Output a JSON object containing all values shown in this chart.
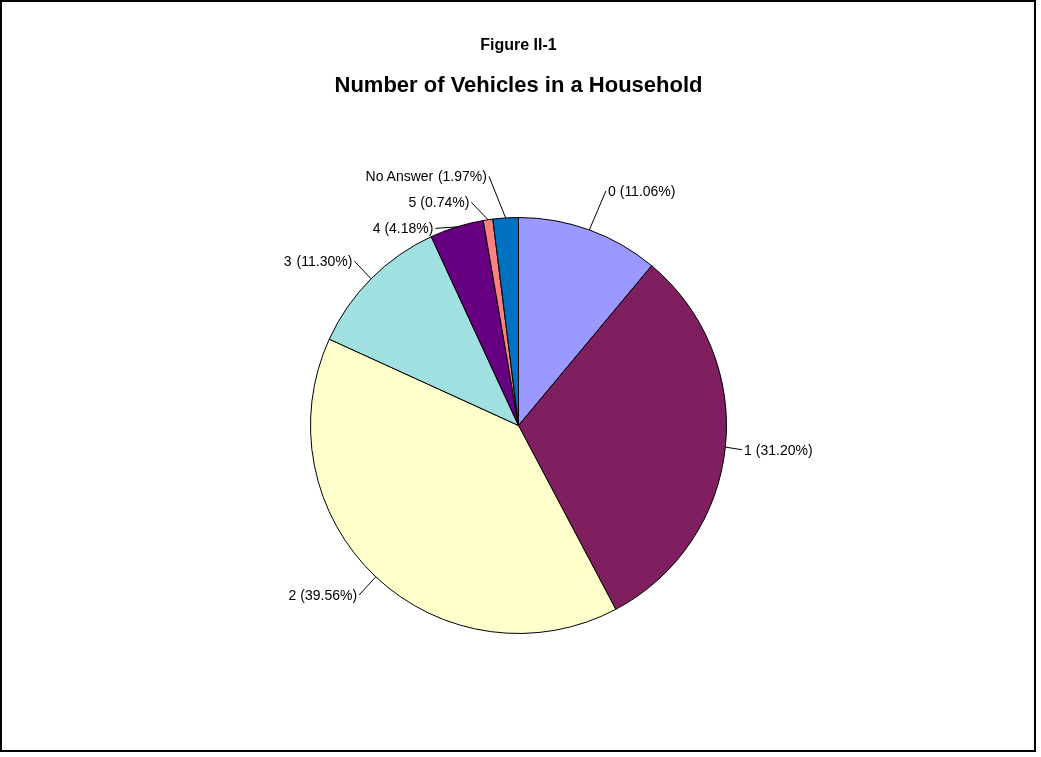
{
  "chart_data": {
    "type": "pie",
    "title": "Figure II-1",
    "subtitle": "Number of Vehicles in a Household",
    "categories": [
      "0",
      "1",
      "2",
      "3",
      "4",
      "5",
      "No Answer"
    ],
    "values": [
      11.06,
      31.2,
      39.56,
      11.3,
      4.18,
      0.74,
      1.97
    ],
    "value_labels": [
      "(11.06%)",
      "(31.20%)",
      "(39.56%)",
      "(11.30%)",
      "(4.18%)",
      "(0.74%)",
      "(1.97%)"
    ],
    "colors": [
      "#9999ff",
      "#7f1f5f",
      "#ffffcc",
      "#a0e0e0",
      "#660080",
      "#ff8080",
      "#0070c0"
    ]
  }
}
